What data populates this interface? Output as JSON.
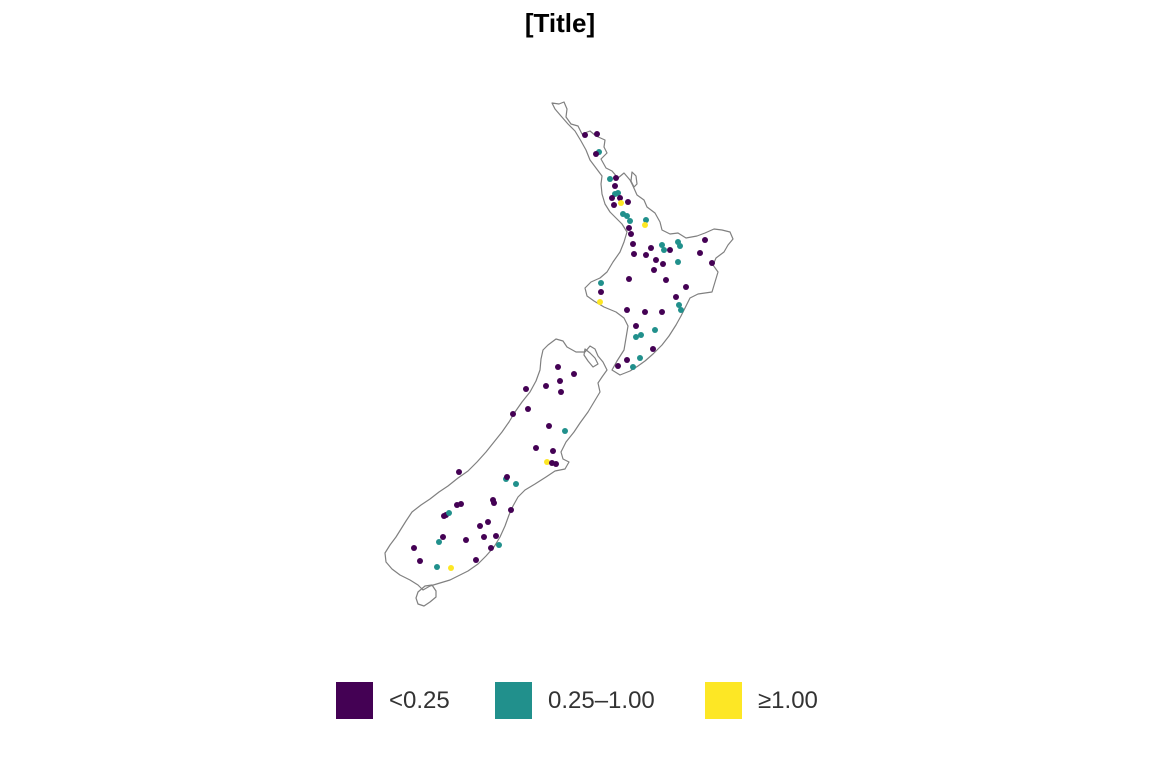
{
  "map": {
    "title": "[Title]",
    "region": "New Zealand",
    "outline_color": "#808080",
    "background": "#ffffff"
  },
  "legend": {
    "position": "bottom",
    "items": [
      {
        "label": "<0.25",
        "color": "#440154"
      },
      {
        "label": "0.25–1.00",
        "color": "#21908C"
      },
      {
        "label": "≥1.00",
        "color": "#FDE725"
      }
    ]
  },
  "chart_data": {
    "type": "scatter",
    "title": "[Title]",
    "legend_placement": "bottom",
    "categories": [
      "<0.25",
      "0.25–1.00",
      "≥1.00"
    ]
  }
}
